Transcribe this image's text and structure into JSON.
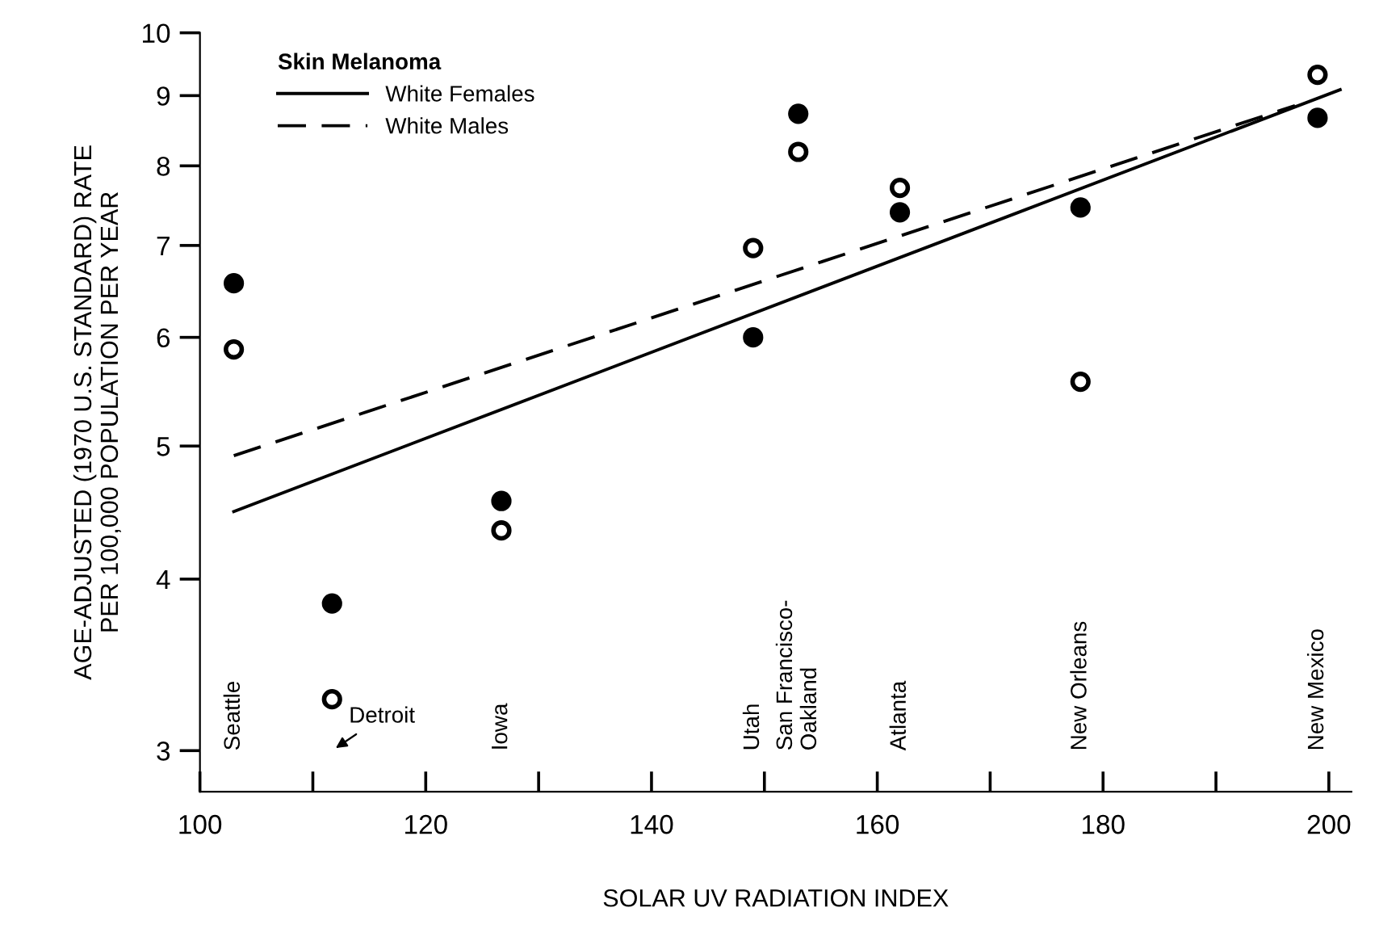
{
  "chart_data": {
    "type": "scatter",
    "xlabel": "SOLAR UV RADIATION INDEX",
    "ylabel": "AGE-ADJUSTED (1970 U.S. STANDARD) RATE\nPER 100,000 POPULATION PER YEAR",
    "legend_title": "Skin Melanoma",
    "x": [
      103,
      111.7,
      126.7,
      149,
      153,
      162,
      178,
      199
    ],
    "series": [
      {
        "type": "line",
        "name": "White Females",
        "color": "#000000",
        "line_style": "solid",
        "marker": "none",
        "x": [
          103,
          201
        ],
        "values": [
          4.48,
          9.09
        ]
      },
      {
        "type": "line",
        "name": "White Males",
        "color": "#000000",
        "line_style": "dashed",
        "marker": "none",
        "x": [
          103,
          197
        ],
        "values": [
          4.92,
          8.85
        ]
      },
      {
        "color": "#000000",
        "marker": "circle",
        "values": [
          6.57,
          3.84,
          4.56,
          6.0,
          8.73,
          7.4,
          7.46,
          8.67
        ]
      },
      {
        "color": "#ffffff",
        "marker": "circle",
        "values": [
          5.88,
          3.27,
          4.34,
          6.97,
          8.19,
          7.71,
          5.57,
          9.32
        ]
      }
    ],
    "annotations": [
      "Seattle",
      "Detroit",
      "Iowa",
      "Utah",
      "San Francisco-\nOakland",
      "Atlanta",
      "New Orleans",
      "New Mexico"
    ],
    "log": "y",
    "xlim": [
      100,
      202
    ],
    "ylim": [
      2.8,
      10
    ],
    "xticks": [
      100,
      {
        "value": 110,
        "label": null
      },
      120,
      {
        "value": 130,
        "label": null
      },
      140,
      {
        "value": 150,
        "label": null
      },
      160,
      {
        "value": 170,
        "label": null
      },
      180,
      {
        "value": 190,
        "label": null
      },
      200
    ],
    "yticks": [
      3,
      4,
      5,
      6,
      7,
      8,
      9,
      10
    ],
    "grid": false,
    "legend": "top left"
  }
}
